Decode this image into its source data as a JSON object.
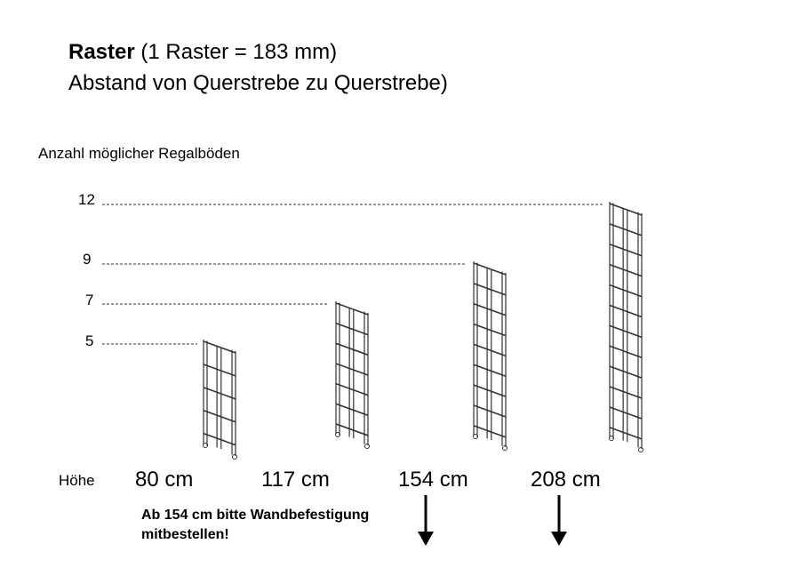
{
  "title": {
    "bold": "Raster",
    "rest": " (1 Raster = 183 mm)",
    "line2": "Abstand von Querstrebe zu Querstrebe)"
  },
  "y_label": "Anzahl möglicher Regalböden",
  "row_label": "Höhe",
  "shelves": [
    {
      "levels": "5",
      "height": "80 cm"
    },
    {
      "levels": "7",
      "height": "117 cm"
    },
    {
      "levels": "9",
      "height": "154 cm"
    },
    {
      "levels": "12",
      "height": "208 cm"
    }
  ],
  "note": {
    "line1": "Ab 154 cm bitte Wandbefestigung",
    "line2": "mitbestellen!"
  },
  "line_color": "#333333"
}
